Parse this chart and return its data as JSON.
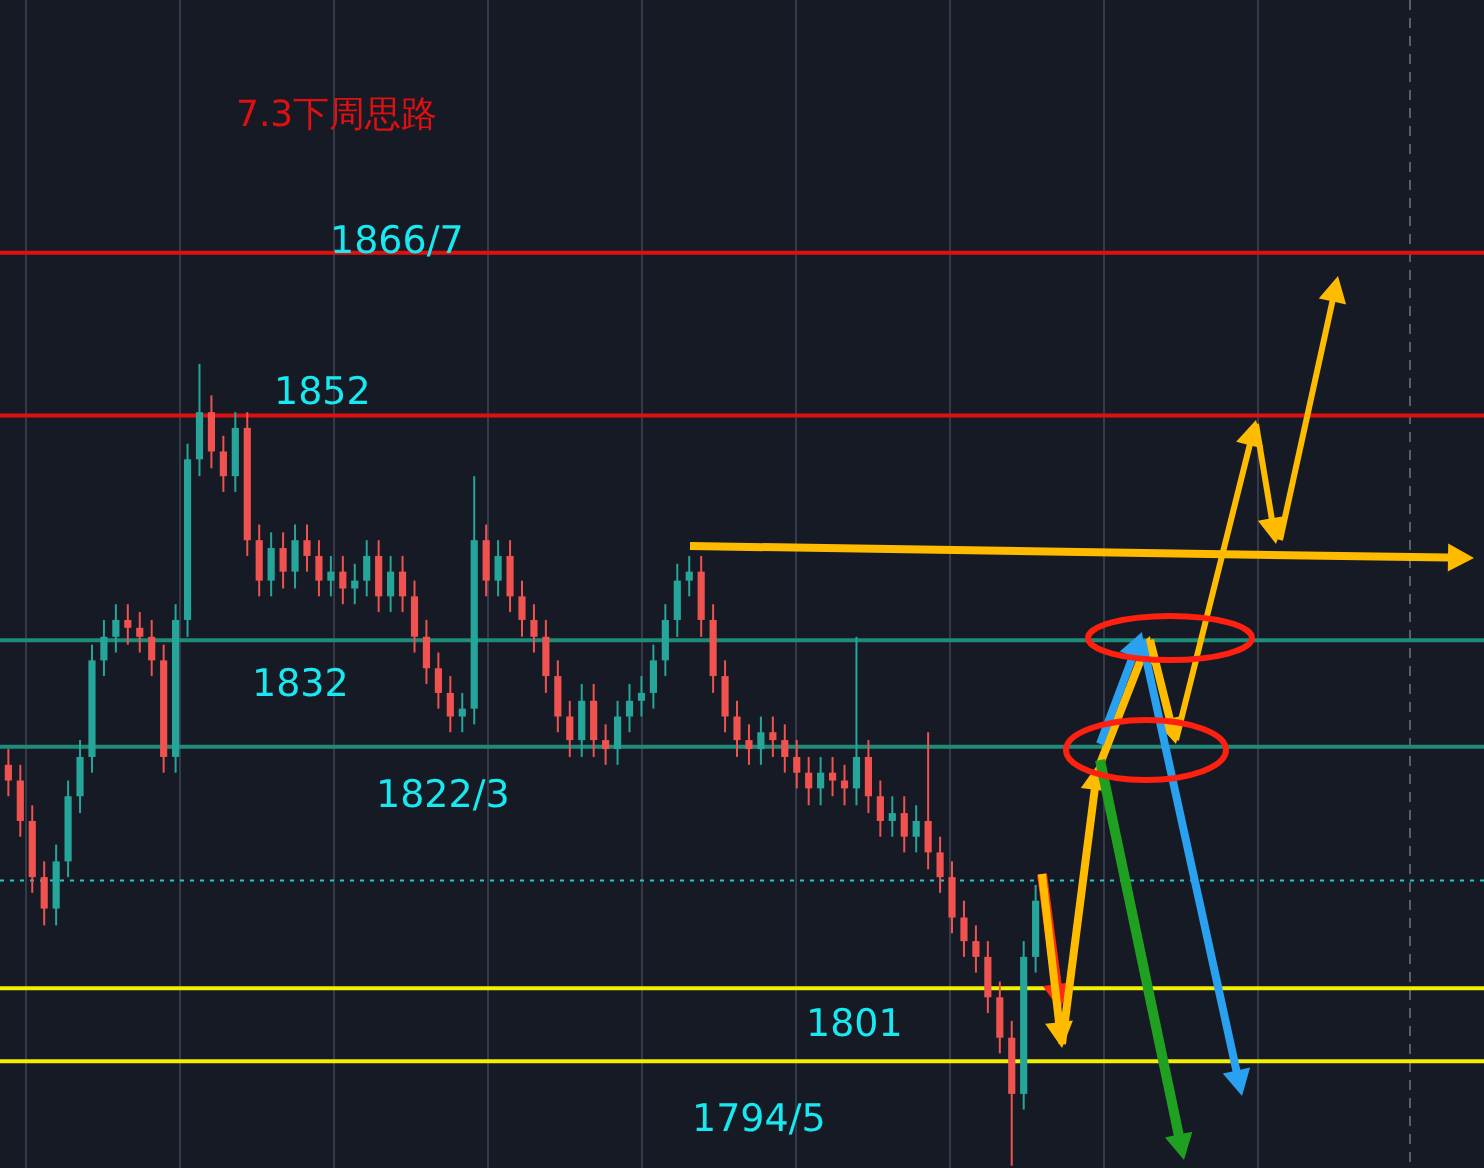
{
  "chart_data": {
    "type": "candlestick",
    "title": "7.3下周思路",
    "ylim": [
      1785,
      1889
    ],
    "categories": [
      null,
      null,
      null,
      null,
      null,
      null,
      null,
      null,
      null,
      null,
      null,
      null,
      null,
      null,
      null,
      null,
      null,
      null,
      null,
      null,
      null,
      null,
      null,
      null,
      null,
      null,
      null,
      null,
      null,
      null,
      null,
      null,
      null,
      null,
      null,
      null,
      null,
      null,
      null,
      null,
      null,
      null,
      null,
      null,
      null,
      null,
      null,
      null,
      null,
      null,
      null,
      null,
      null,
      null,
      null,
      null,
      null,
      null,
      null,
      null,
      null,
      null,
      null,
      null,
      null,
      null,
      null,
      null,
      null,
      null,
      null,
      null,
      null,
      null,
      null,
      null,
      null,
      null,
      null,
      null,
      null,
      null,
      null,
      null,
      null,
      null,
      null
    ],
    "ohlc": [
      [
        1820.9,
        1822.3,
        1818.1,
        1819.5
      ],
      [
        1819.5,
        1820.9,
        1814.5,
        1815.9
      ],
      [
        1815.9,
        1817.3,
        1809.5,
        1810.9
      ],
      [
        1810.9,
        1812.3,
        1806.6,
        1808.1
      ],
      [
        1808.1,
        1813.8,
        1806.6,
        1812.3
      ],
      [
        1812.3,
        1819.5,
        1810.9,
        1818.1
      ],
      [
        1818.1,
        1823.1,
        1816.6,
        1821.6
      ],
      [
        1821.6,
        1831.6,
        1820.2,
        1830.2
      ],
      [
        1830.2,
        1833.8,
        1828.8,
        1832.3
      ],
      [
        1832.3,
        1835.2,
        1830.9,
        1833.8
      ],
      [
        1833.8,
        1835.2,
        1831.6,
        1833.1
      ],
      [
        1833.1,
        1834.5,
        1830.9,
        1832.3
      ],
      [
        1832.3,
        1833.8,
        1828.8,
        1830.2
      ],
      [
        1830.2,
        1831.6,
        1820.2,
        1821.6
      ],
      [
        1821.6,
        1835.2,
        1820.2,
        1833.8
      ],
      [
        1833.8,
        1849.5,
        1832.3,
        1848.1
      ],
      [
        1848.1,
        1856.6,
        1846.6,
        1852.3
      ],
      [
        1852.3,
        1853.8,
        1847.3,
        1848.8
      ],
      [
        1848.8,
        1850.2,
        1845.2,
        1846.6
      ],
      [
        1846.6,
        1852.3,
        1845.2,
        1850.9
      ],
      [
        1850.9,
        1852.3,
        1839.5,
        1840.9
      ],
      [
        1840.9,
        1842.3,
        1835.9,
        1837.3
      ],
      [
        1837.3,
        1841.6,
        1835.9,
        1840.2
      ],
      [
        1840.2,
        1841.6,
        1836.6,
        1838.1
      ],
      [
        1838.1,
        1842.3,
        1836.6,
        1840.9
      ],
      [
        1840.9,
        1842.3,
        1838.1,
        1839.5
      ],
      [
        1839.5,
        1840.9,
        1835.9,
        1837.3
      ],
      [
        1837.3,
        1839.5,
        1835.9,
        1838.1
      ],
      [
        1838.1,
        1839.5,
        1835.2,
        1836.6
      ],
      [
        1836.6,
        1838.8,
        1835.2,
        1837.3
      ],
      [
        1837.3,
        1840.9,
        1835.9,
        1839.5
      ],
      [
        1839.5,
        1840.9,
        1834.5,
        1835.9
      ],
      [
        1835.9,
        1839.5,
        1834.5,
        1838.1
      ],
      [
        1838.1,
        1839.5,
        1834.5,
        1835.9
      ],
      [
        1835.9,
        1837.3,
        1830.9,
        1832.3
      ],
      [
        1832.3,
        1833.8,
        1828.1,
        1829.5
      ],
      [
        1829.5,
        1830.9,
        1825.9,
        1827.3
      ],
      [
        1827.3,
        1828.8,
        1823.8,
        1825.2
      ],
      [
        1825.2,
        1827.3,
        1823.8,
        1825.9
      ],
      [
        1825.9,
        1846.6,
        1824.5,
        1840.9
      ],
      [
        1840.9,
        1842.3,
        1835.9,
        1837.3
      ],
      [
        1837.3,
        1840.9,
        1835.9,
        1839.5
      ],
      [
        1839.5,
        1840.9,
        1834.5,
        1835.9
      ],
      [
        1835.9,
        1837.3,
        1832.3,
        1833.8
      ],
      [
        1833.8,
        1835.2,
        1830.9,
        1832.3
      ],
      [
        1832.3,
        1833.8,
        1827.3,
        1828.8
      ],
      [
        1828.8,
        1830.2,
        1823.8,
        1825.2
      ],
      [
        1825.2,
        1826.6,
        1821.6,
        1823.1
      ],
      [
        1823.1,
        1828.1,
        1821.6,
        1826.6
      ],
      [
        1826.6,
        1828.1,
        1821.6,
        1823.1
      ],
      [
        1823.1,
        1824.5,
        1820.9,
        1822.3
      ],
      [
        1822.3,
        1826.6,
        1820.9,
        1825.2
      ],
      [
        1825.2,
        1828.1,
        1823.8,
        1826.6
      ],
      [
        1826.6,
        1828.8,
        1825.2,
        1827.3
      ],
      [
        1827.3,
        1831.6,
        1825.9,
        1830.2
      ],
      [
        1830.2,
        1835.2,
        1828.8,
        1833.8
      ],
      [
        1833.8,
        1838.8,
        1832.3,
        1837.3
      ],
      [
        1837.3,
        1839.5,
        1835.9,
        1838.1
      ],
      [
        1838.1,
        1839.5,
        1832.3,
        1833.8
      ],
      [
        1833.8,
        1835.2,
        1827.3,
        1828.8
      ],
      [
        1828.8,
        1830.2,
        1823.8,
        1825.2
      ],
      [
        1825.2,
        1826.6,
        1821.6,
        1823.1
      ],
      [
        1823.1,
        1824.5,
        1820.9,
        1822.3
      ],
      [
        1822.3,
        1825.2,
        1820.9,
        1823.8
      ],
      [
        1823.8,
        1825.2,
        1821.6,
        1823.1
      ],
      [
        1823.1,
        1824.5,
        1820.2,
        1821.6
      ],
      [
        1821.6,
        1823.1,
        1818.8,
        1820.2
      ],
      [
        1820.2,
        1821.6,
        1817.3,
        1818.8
      ],
      [
        1818.8,
        1821.6,
        1817.3,
        1820.2
      ],
      [
        1820.2,
        1821.6,
        1818.1,
        1819.5
      ],
      [
        1819.5,
        1820.9,
        1817.3,
        1818.8
      ],
      [
        1818.8,
        1832.3,
        1817.3,
        1821.6
      ],
      [
        1821.6,
        1823.1,
        1816.6,
        1818.1
      ],
      [
        1818.1,
        1819.5,
        1814.5,
        1815.9
      ],
      [
        1815.9,
        1818.1,
        1814.5,
        1816.6
      ],
      [
        1816.6,
        1818.1,
        1813.1,
        1814.5
      ],
      [
        1814.5,
        1817.3,
        1813.1,
        1815.9
      ],
      [
        1815.9,
        1823.8,
        1811.6,
        1813.1
      ],
      [
        1813.1,
        1814.5,
        1809.5,
        1810.9
      ],
      [
        1810.9,
        1812.3,
        1805.9,
        1807.3
      ],
      [
        1807.3,
        1808.8,
        1803.8,
        1805.2
      ],
      [
        1805.2,
        1806.6,
        1802.4,
        1803.8
      ],
      [
        1803.8,
        1805.2,
        1798.8,
        1800.2
      ],
      [
        1800.2,
        1801.6,
        1795.2,
        1796.6
      ],
      [
        1796.6,
        1798.1,
        1785.2,
        1791.6
      ],
      [
        1791.6,
        1805.2,
        1790.2,
        1803.8
      ],
      [
        1803.8,
        1810.2,
        1802.4,
        1808.8
      ]
    ],
    "colors": [
      "#f0524f",
      "#f0524f",
      "#f0524f",
      "#f0524f",
      "#26a69a",
      "#26a69a",
      "#26a69a",
      "#26a69a",
      "#26a69a",
      "#26a69a",
      "#f0524f",
      "#f0524f",
      "#f0524f",
      "#f0524f",
      "#26a69a",
      "#26a69a",
      "#26a69a",
      "#f0524f",
      "#f0524f",
      "#26a69a",
      "#f0524f",
      "#f0524f",
      "#26a69a",
      "#f0524f",
      "#26a69a",
      "#f0524f",
      "#f0524f",
      "#26a69a",
      "#f0524f",
      "#26a69a",
      "#26a69a",
      "#f0524f",
      "#26a69a",
      "#f0524f",
      "#f0524f",
      "#f0524f",
      "#f0524f",
      "#f0524f",
      "#26a69a",
      "#26a69a",
      "#f0524f",
      "#26a69a",
      "#f0524f",
      "#f0524f",
      "#f0524f",
      "#f0524f",
      "#f0524f",
      "#f0524f",
      "#26a69a",
      "#f0524f",
      "#f0524f",
      "#26a69a",
      "#26a69a",
      "#26a69a",
      "#26a69a",
      "#26a69a",
      "#26a69a",
      "#26a69a",
      "#f0524f",
      "#f0524f",
      "#f0524f",
      "#f0524f",
      "#f0524f",
      "#26a69a",
      "#f0524f",
      "#f0524f",
      "#f0524f",
      "#f0524f",
      "#26a69a",
      "#f0524f",
      "#f0524f",
      "#26a69a",
      "#f0524f",
      "#f0524f",
      "#26a69a",
      "#f0524f",
      "#26a69a",
      "#f0524f",
      "#f0524f",
      "#f0524f",
      "#f0524f",
      "#f0524f",
      "#f0524f",
      "#f0524f",
      "#f0524f",
      "#26a69a",
      "#26a69a"
    ],
    "ref_lines": [
      {
        "axis": "y",
        "value": 1866.5,
        "label": "1866/7",
        "color": "#e01010"
      },
      {
        "axis": "y",
        "value": 1852,
        "label": "1852",
        "color": "#e01010"
      },
      {
        "axis": "y",
        "value": 1832,
        "label": "1832",
        "color": "#1e8c7a"
      },
      {
        "axis": "y",
        "value": 1822.5,
        "label": "1822/3",
        "color": "#1e8c7a"
      },
      {
        "axis": "y",
        "value": 1810.6,
        "label": null,
        "color": "#20c8c8",
        "line_style": "dotted"
      },
      {
        "axis": "y",
        "value": 1801,
        "label": "1801",
        "color": "#f0f000"
      },
      {
        "axis": "y",
        "value": 1794.5,
        "label": "1794/5",
        "color": "#f0f000"
      }
    ]
  }
}
